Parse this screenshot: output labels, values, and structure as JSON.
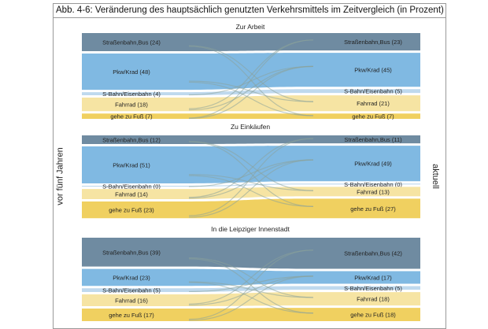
{
  "figure_title": "Abb. 4-6:   Veränderung des hauptsächlich genutzten Verkehrsmittels im Zeitvergleich (in Prozent)",
  "left_axis_label": "vor fünf Jahren",
  "right_axis_label": "aktuell",
  "colors": {
    "Straßenbahn,Bus": "#6f8ba1",
    "Pkw/Krad": "#80b9e2",
    "S-Bahn/Eisenbahn": "#bfd9ee",
    "Fahrrad": "#f6e4a3",
    "gehe zu Fuß": "#f0d060"
  },
  "chart_data": [
    {
      "type": "sankey",
      "title": "Zur Arbeit",
      "categories": [
        "Straßenbahn,Bus",
        "Pkw/Krad",
        "S-Bahn/Eisenbahn",
        "Fahrrad",
        "gehe zu Fuß"
      ],
      "series": [
        {
          "name": "vor fünf Jahren",
          "values": [
            24,
            48,
            4,
            18,
            7
          ]
        },
        {
          "name": "aktuell",
          "values": [
            23,
            45,
            5,
            21,
            7
          ]
        }
      ],
      "left_labels": [
        "Straßenbahn,Bus (24)",
        "Pkw/Krad (48)",
        "S-Bahn/Eisenbahn (4)",
        "Fahrrad (18)",
        "gehe zu Fuß (7)"
      ],
      "right_labels": [
        "Straßenbahn,Bus (23)",
        "Pkw/Krad (45)",
        "S-Bahn/Eisenbahn (5)",
        "Fahrrad (21)",
        "gehe zu Fuß (7)"
      ]
    },
    {
      "type": "sankey",
      "title": "Zu Einkäufen",
      "categories": [
        "Straßenbahn,Bus",
        "Pkw/Krad",
        "S-Bahn/Eisenbahn",
        "Fahrrad",
        "gehe zu Fuß"
      ],
      "series": [
        {
          "name": "vor fünf Jahren",
          "values": [
            12,
            51,
            0,
            14,
            23
          ]
        },
        {
          "name": "aktuell",
          "values": [
            11,
            49,
            0,
            13,
            27
          ]
        }
      ],
      "left_labels": [
        "Straßenbahn,Bus (12)",
        "Pkw/Krad (51)",
        "S-Bahn/Eisenbahn (0)",
        "Fahrrad (14)",
        "gehe zu Fuß (23)"
      ],
      "right_labels": [
        "Straßenbahn,Bus (11)",
        "Pkw/Krad (49)",
        "S-Bahn/Eisenbahn (0)",
        "Fahrrad (13)",
        "gehe zu Fuß (27)"
      ]
    },
    {
      "type": "sankey",
      "title": "In die Leipziger Innenstadt",
      "categories": [
        "Straßenbahn,Bus",
        "Pkw/Krad",
        "S-Bahn/Eisenbahn",
        "Fahrrad",
        "gehe zu Fuß"
      ],
      "series": [
        {
          "name": "vor fünf Jahren",
          "values": [
            39,
            23,
            5,
            16,
            17
          ]
        },
        {
          "name": "aktuell",
          "values": [
            42,
            17,
            5,
            18,
            18
          ]
        }
      ],
      "left_labels": [
        "Straßenbahn,Bus (39)",
        "Pkw/Krad (23)",
        "S-Bahn/Eisenbahn (5)",
        "Fahrrad (16)",
        "gehe zu Fuß (17)"
      ],
      "right_labels": [
        "Straßenbahn,Bus (42)",
        "Pkw/Krad (17)",
        "S-Bahn/Eisenbahn (5)",
        "Fahrrad (18)",
        "gehe zu Fuß (18)"
      ]
    }
  ]
}
